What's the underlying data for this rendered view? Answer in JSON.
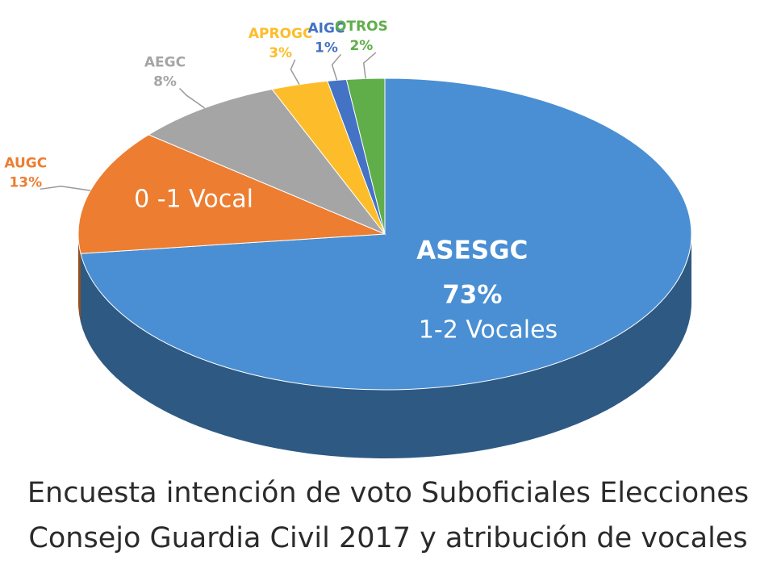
{
  "chart_data": {
    "type": "pie",
    "title_lines": [
      "Encuesta intención de voto Suboficiales Elecciones",
      "Consejo Guardia Civil 2017 y atribución de vocales"
    ],
    "categories": [
      "ASESGC",
      "AUGC",
      "AEGC",
      "APROGC",
      "AIGC",
      "OTROS"
    ],
    "values": [
      73,
      13,
      8,
      3,
      1,
      2
    ],
    "value_labels": [
      "73%",
      "13%",
      "8%",
      "3%",
      "1%",
      "2%"
    ],
    "colors": [
      "#4a8fd3",
      "#ed7d31",
      "#a5a5a5",
      "#fdbd2a",
      "#4472c4",
      "#5fae4a"
    ],
    "annotations": [
      "0 -1 Vocal",
      "1-2 Vocales"
    ]
  }
}
